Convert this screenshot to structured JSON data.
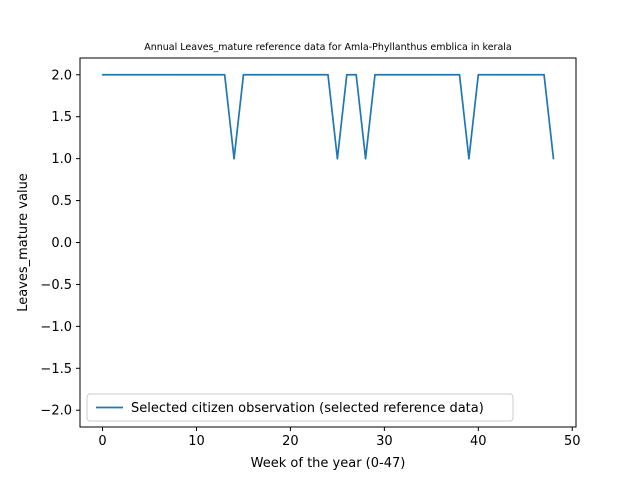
{
  "chart_data": {
    "type": "line",
    "title": "Annual Leaves_mature reference data for Amla-Phyllanthus emblica in kerala",
    "xlabel": "Week of the year (0-47)",
    "ylabel": "Leaves_mature value",
    "xlim": [
      -2.4,
      50.4
    ],
    "ylim": [
      -2.2,
      2.2
    ],
    "xticks": [
      0,
      10,
      20,
      30,
      40,
      50
    ],
    "xtick_labels": [
      "0",
      "10",
      "20",
      "30",
      "40",
      "50"
    ],
    "yticks": [
      2.0,
      1.5,
      1.0,
      0.5,
      0.0,
      -0.5,
      -1.0,
      -1.5,
      -2.0
    ],
    "ytick_labels": [
      "2.0",
      "1.5",
      "1.0",
      "0.5",
      "0.0",
      "−0.5",
      "−1.0",
      "−1.5",
      "−2.0"
    ],
    "grid": false,
    "legend_position": "lower-left",
    "series": [
      {
        "name": "Selected citizen observation (selected reference data)",
        "color": "#1f77b4",
        "x": [
          0,
          1,
          2,
          3,
          4,
          5,
          6,
          7,
          8,
          9,
          10,
          11,
          12,
          13,
          14,
          15,
          16,
          17,
          18,
          19,
          20,
          21,
          22,
          23,
          24,
          25,
          26,
          27,
          28,
          29,
          30,
          31,
          32,
          33,
          34,
          35,
          36,
          37,
          38,
          39,
          40,
          41,
          42,
          43,
          44,
          45,
          46,
          47,
          48
        ],
        "values": [
          2,
          2,
          2,
          2,
          2,
          2,
          2,
          2,
          2,
          2,
          2,
          2,
          2,
          2,
          1,
          2,
          2,
          2,
          2,
          2,
          2,
          2,
          2,
          2,
          2,
          1,
          2,
          2,
          1,
          2,
          2,
          2,
          2,
          2,
          2,
          2,
          2,
          2,
          2,
          1,
          2,
          2,
          2,
          2,
          2,
          2,
          2,
          2,
          1
        ]
      }
    ]
  }
}
